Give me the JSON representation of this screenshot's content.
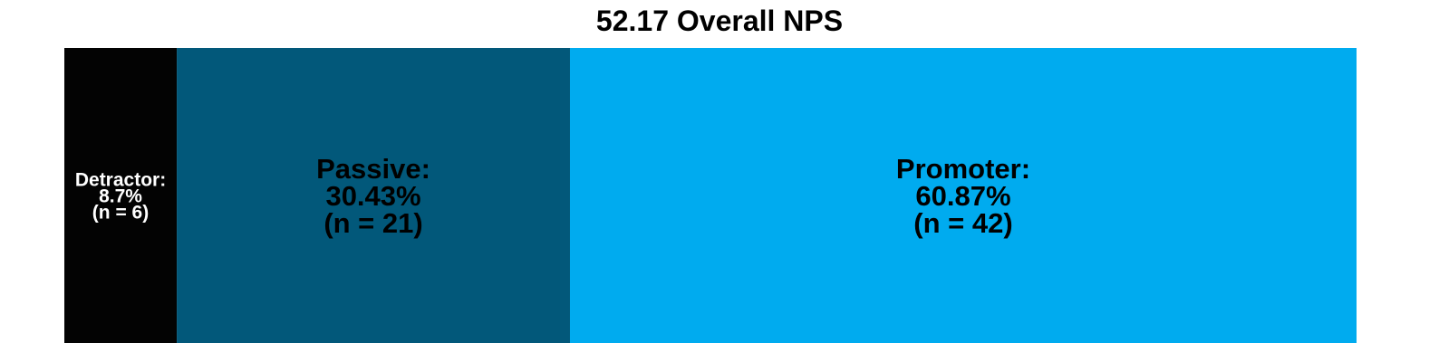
{
  "chart_data": {
    "type": "bar",
    "title": "52.17 Overall NPS",
    "orientation": "horizontal-stacked",
    "segments": [
      {
        "category": "Detractor",
        "percent": 8.7,
        "count": 6,
        "color": "#030303",
        "text_color": "#ffffff",
        "label_lines": [
          "Detractor:",
          "8.7%",
          "(n = 6)"
        ]
      },
      {
        "category": "Passive",
        "percent": 30.43,
        "count": 21,
        "color": "#02587A",
        "text_color": "#000000",
        "label_lines": [
          "Passive:",
          "30.43%",
          "(n = 21)"
        ]
      },
      {
        "category": "Promoter",
        "percent": 60.87,
        "count": 42,
        "color": "#00ABEF",
        "text_color": "#000000",
        "label_lines": [
          "Promoter:",
          "60.87%",
          "(n = 42)"
        ]
      }
    ],
    "xlim": [
      0,
      100
    ],
    "grid": false,
    "legend": "none"
  }
}
